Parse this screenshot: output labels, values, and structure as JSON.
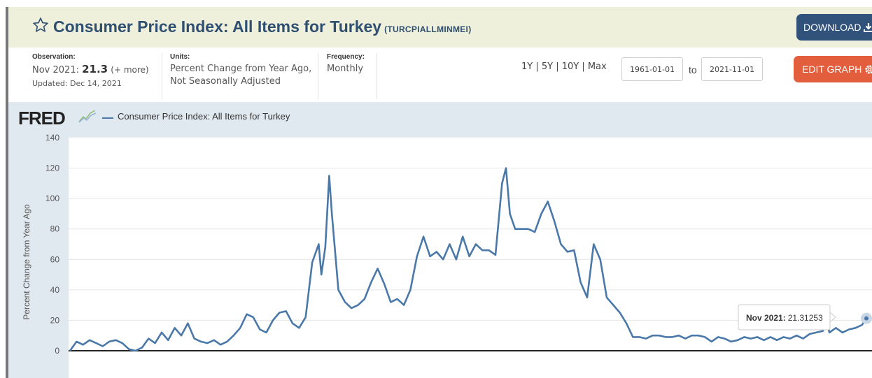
{
  "header": {
    "title": "Consumer Price Index: All Items for Turkey",
    "series_id": "(TURCPIALLMINMEI)",
    "download_label": "DOWNLOAD",
    "star_icon": "star-icon",
    "download_icon": "download-icon"
  },
  "meta": {
    "observation_label": "Observation:",
    "observation_date": "Nov 2021:",
    "observation_value": "21.3",
    "observation_more": "(+ more)",
    "updated": "Updated: Dec 14, 2021",
    "units_label": "Units:",
    "units_line1": "Percent Change from Year Ago,",
    "units_line2": "Not Seasonally Adjusted",
    "frequency_label": "Frequency:",
    "frequency_value": "Monthly"
  },
  "controls": {
    "range_links": "1Y | 5Y | 10Y | Max",
    "start_date": "1961-01-01",
    "to_label": "to",
    "end_date": "2021-11-01",
    "edit_label": "EDIT GRAPH",
    "edit_icon": "gear-icon"
  },
  "colors": {
    "line": "#4a78a8",
    "title": "#2f4f70",
    "edit_button": "#e25e3c",
    "download_button": "#31527a"
  },
  "chart_data": {
    "type": "line",
    "logo": "FRED",
    "legend": "Consumer Price Index: All Items for Turkey",
    "ylabel": "Percent Change from Year Ago",
    "xlabel": "",
    "ylim": [
      0,
      140
    ],
    "yticks": [
      "140",
      "120",
      "100",
      "80",
      "60",
      "40",
      "20",
      "0"
    ],
    "grid": true,
    "tooltip_label": "Nov 2021:",
    "tooltip_value": "21.31253",
    "series": [
      {
        "name": "Consumer Price Index: All Items for Turkey",
        "x": [
          1961.0,
          1961.5,
          1962.0,
          1962.5,
          1963.0,
          1963.5,
          1964.0,
          1964.5,
          1965.0,
          1965.5,
          1966.0,
          1966.5,
          1967.0,
          1967.5,
          1968.0,
          1968.5,
          1969.0,
          1969.5,
          1970.0,
          1970.5,
          1971.0,
          1971.5,
          1972.0,
          1972.5,
          1973.0,
          1973.5,
          1974.0,
          1974.5,
          1975.0,
          1975.5,
          1976.0,
          1976.5,
          1977.0,
          1977.5,
          1978.0,
          1978.5,
          1979.0,
          1979.5,
          1980.0,
          1980.2,
          1980.5,
          1980.8,
          1981.0,
          1981.5,
          1982.0,
          1982.5,
          1983.0,
          1983.5,
          1984.0,
          1984.5,
          1985.0,
          1985.5,
          1986.0,
          1986.5,
          1987.0,
          1987.5,
          1988.0,
          1988.5,
          1989.0,
          1989.5,
          1990.0,
          1990.5,
          1991.0,
          1991.5,
          1992.0,
          1992.5,
          1993.0,
          1993.5,
          1994.0,
          1994.3,
          1994.6,
          1995.0,
          1995.5,
          1996.0,
          1996.5,
          1997.0,
          1997.5,
          1998.0,
          1998.5,
          1999.0,
          1999.5,
          2000.0,
          2000.5,
          2001.0,
          2001.5,
          2002.0,
          2002.5,
          2003.0,
          2003.5,
          2004.0,
          2004.5,
          2005.0,
          2005.5,
          2006.0,
          2006.5,
          2007.0,
          2007.5,
          2008.0,
          2008.5,
          2009.0,
          2009.5,
          2010.0,
          2010.5,
          2011.0,
          2011.5,
          2012.0,
          2012.5,
          2013.0,
          2013.5,
          2014.0,
          2014.5,
          2015.0,
          2015.5,
          2016.0,
          2016.5,
          2017.0,
          2017.5,
          2018.0,
          2018.5,
          2018.8,
          2019.0,
          2019.5,
          2020.0,
          2020.5,
          2021.0,
          2021.5,
          2021.83
        ],
        "values": [
          0,
          6,
          4,
          7,
          5,
          3,
          6,
          7,
          5,
          1,
          0,
          2,
          8,
          5,
          12,
          7,
          15,
          10,
          18,
          8,
          6,
          5,
          7,
          4,
          6,
          10,
          15,
          24,
          22,
          14,
          12,
          20,
          25,
          26,
          18,
          15,
          22,
          58,
          70,
          50,
          68,
          115,
          90,
          40,
          32,
          28,
          30,
          34,
          45,
          54,
          44,
          32,
          34,
          30,
          40,
          62,
          75,
          62,
          65,
          60,
          70,
          60,
          75,
          62,
          70,
          66,
          66,
          63,
          110,
          120,
          90,
          80,
          80,
          80,
          78,
          90,
          98,
          85,
          70,
          65,
          66,
          45,
          35,
          70,
          60,
          35,
          30,
          25,
          18,
          9,
          9,
          8,
          10,
          10,
          9,
          9,
          10,
          8,
          10,
          10,
          9,
          6,
          9,
          8,
          6,
          7,
          9,
          8,
          9,
          7,
          9,
          7,
          9,
          8,
          10,
          8,
          11,
          12,
          13,
          20,
          12,
          15,
          12,
          14,
          15,
          17,
          21.3
        ]
      }
    ]
  }
}
